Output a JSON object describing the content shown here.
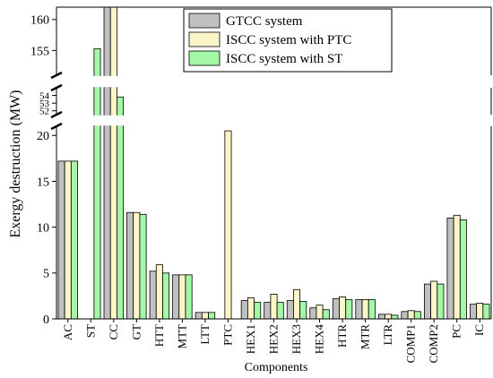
{
  "chart_data": {
    "type": "bar",
    "xlabel": "Components",
    "ylabel": "Exergy destruction (MW)",
    "categories": [
      "AC",
      "ST",
      "CC",
      "GT",
      "HTT",
      "MTT",
      "LTT",
      "PTC",
      "HEX1",
      "HEX2",
      "HEX3",
      "HEX4",
      "HTR",
      "MTR",
      "LTR",
      "COMP1",
      "COMP2",
      "PC",
      "IC"
    ],
    "series": [
      {
        "name": "GTCC system",
        "color": "#c0c0c0",
        "values": [
          17.2,
          0,
          162.0,
          11.6,
          5.2,
          4.8,
          0.7,
          0,
          2.0,
          1.8,
          2.0,
          1.2,
          2.2,
          2.1,
          0.5,
          0.8,
          3.8,
          11.0,
          1.6
        ]
      },
      {
        "name": "ISCC system with PTC",
        "color": "#fbf5c8",
        "values": [
          17.2,
          0,
          162.0,
          11.6,
          5.9,
          4.8,
          0.7,
          20.5,
          2.3,
          2.7,
          3.2,
          1.5,
          2.4,
          2.1,
          0.5,
          0.9,
          4.1,
          11.3,
          1.7
        ]
      },
      {
        "name": "ISCC system with ST",
        "color": "#a3f7a7",
        "values": [
          17.2,
          155.3,
          53.8,
          11.4,
          5.0,
          4.8,
          0.7,
          0,
          1.8,
          1.8,
          1.9,
          1.0,
          2.1,
          2.1,
          0.4,
          0.8,
          3.8,
          10.8,
          1.6
        ]
      }
    ],
    "y_axis_segments": [
      {
        "range": [
          0,
          21
        ],
        "ticks": [
          0,
          5,
          10,
          15,
          20
        ]
      },
      {
        "range": [
          51.5,
          55
        ],
        "ticks": [
          52,
          53,
          54
        ]
      },
      {
        "range": [
          151,
          162
        ],
        "ticks": [
          155,
          160
        ]
      }
    ],
    "axis_break": true,
    "grid": false,
    "legend_position": "top-right"
  }
}
